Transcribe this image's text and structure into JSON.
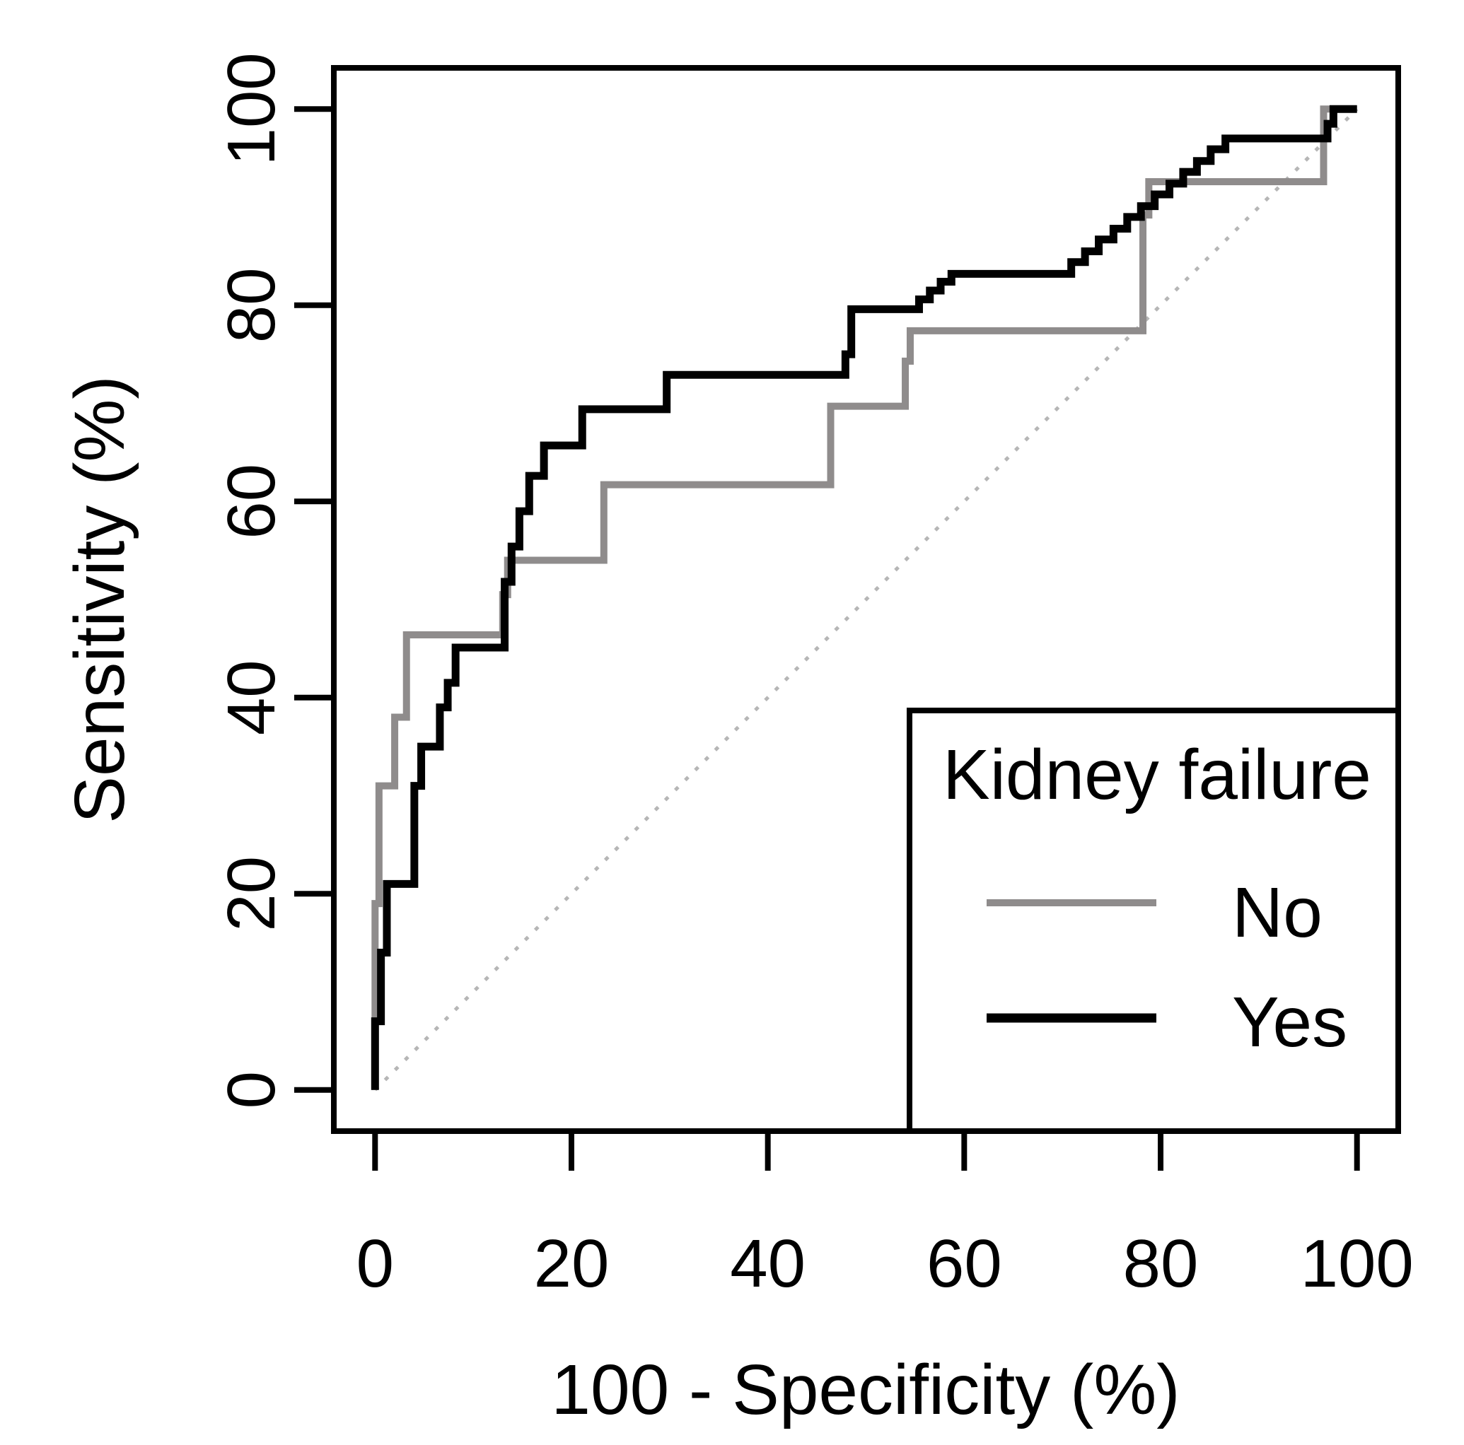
{
  "chart_data": {
    "type": "line",
    "subtype": "roc-step-curves",
    "title": "",
    "xlabel": "100 - Specificity (%)",
    "ylabel": "Sensitivity (%)",
    "xlim": [
      0,
      100
    ],
    "ylim": [
      0,
      100
    ],
    "x_ticks": [
      0,
      20,
      40,
      60,
      80,
      100
    ],
    "y_ticks": [
      0,
      20,
      40,
      60,
      80,
      100
    ],
    "grid": false,
    "background_color": "#ffffff",
    "axis_color": "#000000",
    "diagonal_reference": {
      "from": [
        0,
        0
      ],
      "to": [
        100,
        100
      ],
      "color": "#b6b6b6",
      "style": "dotted"
    },
    "legend": {
      "title": "Kidney failure",
      "position": "bottom-right",
      "entries": [
        {
          "label": "No",
          "color": "#8F8C8C"
        },
        {
          "label": "Yes",
          "color": "#000000"
        }
      ]
    },
    "series": [
      {
        "name": "No",
        "color": "#8F8C8C",
        "points": [
          [
            0,
            0
          ],
          [
            0,
            19
          ],
          [
            0.4,
            19
          ],
          [
            0.4,
            31
          ],
          [
            2,
            31
          ],
          [
            2,
            38
          ],
          [
            3.2,
            38
          ],
          [
            3.2,
            46.4
          ],
          [
            13,
            46.4
          ],
          [
            13,
            50.5
          ],
          [
            13.5,
            50.5
          ],
          [
            13.5,
            54
          ],
          [
            23.3,
            54
          ],
          [
            23.3,
            61.7
          ],
          [
            46.4,
            61.7
          ],
          [
            46.4,
            69.7
          ],
          [
            54,
            69.7
          ],
          [
            54,
            74.3
          ],
          [
            54.5,
            74.3
          ],
          [
            54.5,
            77.4
          ],
          [
            78.2,
            77.4
          ],
          [
            78.2,
            89.2
          ],
          [
            78.8,
            89.2
          ],
          [
            78.8,
            92.6
          ],
          [
            96.6,
            92.6
          ],
          [
            96.6,
            100
          ],
          [
            100,
            100
          ]
        ]
      },
      {
        "name": "Yes",
        "color": "#000000",
        "points": [
          [
            0,
            0
          ],
          [
            0,
            7
          ],
          [
            0.6,
            7
          ],
          [
            0.6,
            14
          ],
          [
            1.2,
            14
          ],
          [
            1.2,
            21
          ],
          [
            4,
            21
          ],
          [
            4,
            31
          ],
          [
            4.7,
            31
          ],
          [
            4.7,
            35
          ],
          [
            6.6,
            35
          ],
          [
            6.6,
            39
          ],
          [
            7.4,
            39
          ],
          [
            7.4,
            41.5
          ],
          [
            8.2,
            41.5
          ],
          [
            8.2,
            45.1
          ],
          [
            13.2,
            45.1
          ],
          [
            13.2,
            51.8
          ],
          [
            13.9,
            51.8
          ],
          [
            13.9,
            55.4
          ],
          [
            14.7,
            55.4
          ],
          [
            14.7,
            59
          ],
          [
            15.7,
            59
          ],
          [
            15.7,
            62.6
          ],
          [
            17.2,
            62.6
          ],
          [
            17.2,
            65.7
          ],
          [
            21.1,
            65.7
          ],
          [
            21.1,
            69.4
          ],
          [
            29.7,
            69.4
          ],
          [
            29.7,
            72.9
          ],
          [
            47.9,
            72.9
          ],
          [
            47.9,
            75
          ],
          [
            48.5,
            75
          ],
          [
            48.5,
            79.6
          ],
          [
            55.4,
            79.6
          ],
          [
            55.4,
            80.6
          ],
          [
            56.5,
            80.6
          ],
          [
            56.5,
            81.5
          ],
          [
            57.6,
            81.5
          ],
          [
            57.6,
            82.4
          ],
          [
            58.7,
            82.4
          ],
          [
            58.7,
            83.2
          ],
          [
            70.9,
            83.2
          ],
          [
            70.9,
            84.4
          ],
          [
            72.3,
            84.4
          ],
          [
            72.3,
            85.5
          ],
          [
            73.7,
            85.5
          ],
          [
            73.7,
            86.7
          ],
          [
            75.2,
            86.7
          ],
          [
            75.2,
            87.8
          ],
          [
            76.6,
            87.8
          ],
          [
            76.6,
            89
          ],
          [
            78,
            89
          ],
          [
            78,
            90.1
          ],
          [
            79.4,
            90.1
          ],
          [
            79.4,
            91.3
          ],
          [
            80.9,
            91.3
          ],
          [
            80.9,
            92.4
          ],
          [
            82.3,
            92.4
          ],
          [
            82.3,
            93.6
          ],
          [
            83.7,
            93.6
          ],
          [
            83.7,
            94.7
          ],
          [
            85.1,
            94.7
          ],
          [
            85.1,
            95.9
          ],
          [
            86.6,
            95.9
          ],
          [
            86.6,
            97
          ],
          [
            88,
            97
          ],
          [
            97,
            97
          ],
          [
            97,
            98.5
          ],
          [
            97.6,
            98.5
          ],
          [
            97.6,
            100
          ],
          [
            100,
            100
          ]
        ]
      }
    ]
  }
}
